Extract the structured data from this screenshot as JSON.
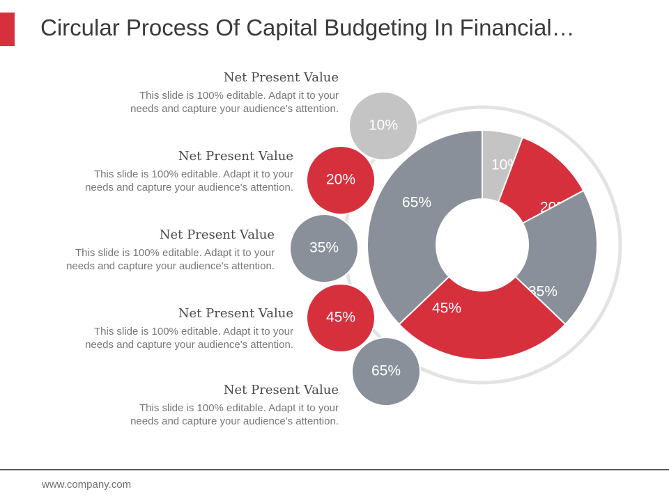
{
  "slide": {
    "title": "Circular Process Of Capital Budgeting In Financial…",
    "footer": "www.company.com"
  },
  "colors": {
    "gray_light": "#c4c4c4",
    "red": "#d7303d",
    "gray": "#8a909a",
    "ring": "#e3e3e3"
  },
  "items": [
    {
      "title": "Net Present Value",
      "description_1": "This slide is 100% editable. Adapt it to your",
      "description_2": "needs and capture your audience's attention."
    },
    {
      "title": "Net Present Value",
      "description_1": "This slide is 100% editable. Adapt it to your",
      "description_2": "needs and capture your audience's attention."
    },
    {
      "title": "Net Present Value",
      "description_1": "This slide is 100% editable. Adapt it to your",
      "description_2": "needs and capture your audience's attention."
    },
    {
      "title": "Net Present Value",
      "description_1": "This slide is 100% editable. Adapt it to your",
      "description_2": "needs and capture your audience's attention."
    },
    {
      "title": "Net Present Value",
      "description_1": "This slide is 100% editable. Adapt it to your",
      "description_2": "needs and capture your audience's attention."
    }
  ],
  "chart_data": {
    "type": "pie",
    "variant": "donut",
    "categories": [
      "Net Present Value",
      "Net Present Value",
      "Net Present Value",
      "Net Present Value",
      "Net Present Value"
    ],
    "values": [
      10,
      20,
      35,
      45,
      65
    ],
    "labels": [
      "10%",
      "20%",
      "35%",
      "45%",
      "65%"
    ],
    "colors": [
      "#c4c4c4",
      "#d7303d",
      "#8a909a",
      "#d7303d",
      "#8a909a"
    ],
    "title": "Circular Process Of Capital Budgeting In Financial…"
  }
}
